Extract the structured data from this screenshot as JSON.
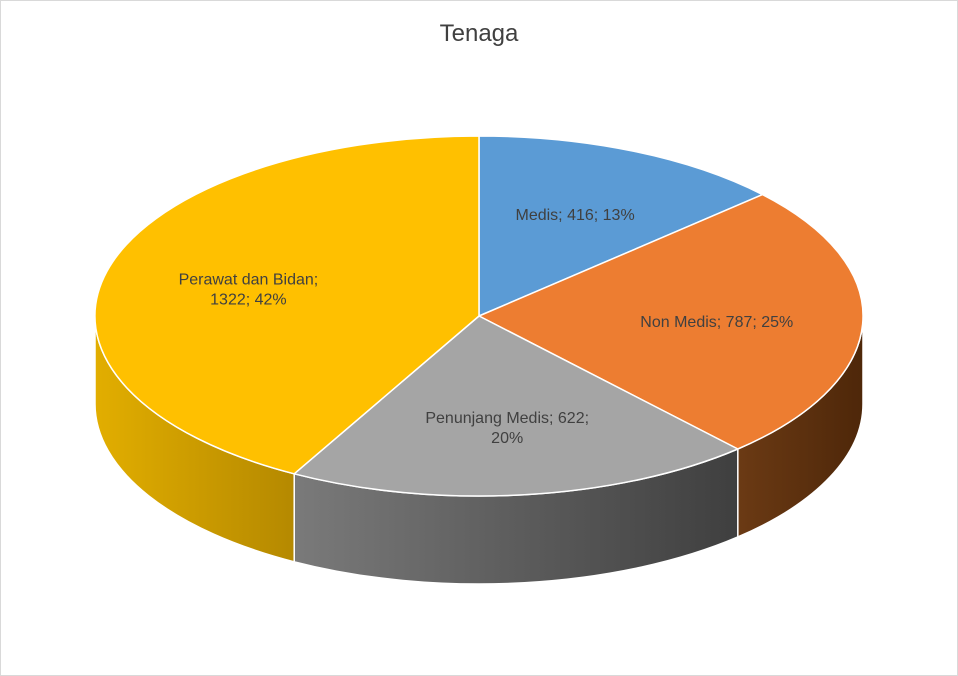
{
  "chart_data": {
    "type": "pie",
    "style": "3d",
    "title": "Tenaga",
    "slices": [
      {
        "label": "Medis",
        "value": 416,
        "percent": 13,
        "color": "#5b9bd5",
        "side_color": "#3a6d9b",
        "data_label": [
          "Medis; 416; 13%"
        ]
      },
      {
        "label": "Non Medis",
        "value": 787,
        "percent": 25,
        "color": "#ed7d31",
        "side_color": "#6b3510",
        "data_label": [
          "Non Medis; 787; 25%"
        ]
      },
      {
        "label": "Penunjang Medis",
        "value": 622,
        "percent": 20,
        "color": "#a5a5a5",
        "side_color": "#4a4a4a",
        "data_label": [
          "Penunjang Medis; 622;",
          "20%"
        ]
      },
      {
        "label": "Perawat dan Bidan",
        "value": 1322,
        "percent": 42,
        "color": "#ffc000",
        "side_color": "#c99a00",
        "data_label": [
          "Perawat dan Bidan;",
          "1322; 42%"
        ]
      }
    ]
  }
}
